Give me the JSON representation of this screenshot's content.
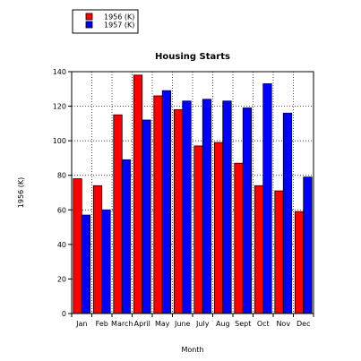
{
  "chart_data": {
    "type": "bar",
    "title": "Housing Starts",
    "xlabel": "Month",
    "ylabel": "1956 (K)",
    "categories": [
      "Jan",
      "Feb",
      "March",
      "April",
      "May",
      "June",
      "July",
      "Aug",
      "Sept",
      "Oct",
      "Nov",
      "Dec"
    ],
    "series": [
      {
        "name": "1956 (K)",
        "color": "#ff0000",
        "values": [
          78,
          74,
          115,
          138,
          126,
          118,
          97,
          99,
          87,
          74,
          71,
          59
        ]
      },
      {
        "name": "1957 (K)",
        "color": "#0000ff",
        "values": [
          57,
          60,
          89,
          112,
          129,
          123,
          124,
          123,
          119,
          133,
          116,
          79
        ]
      }
    ],
    "ylim": [
      0,
      140
    ],
    "yticks": [
      0,
      20,
      40,
      60,
      80,
      100,
      120,
      140
    ],
    "grid": true,
    "legend_position": "top-left"
  }
}
